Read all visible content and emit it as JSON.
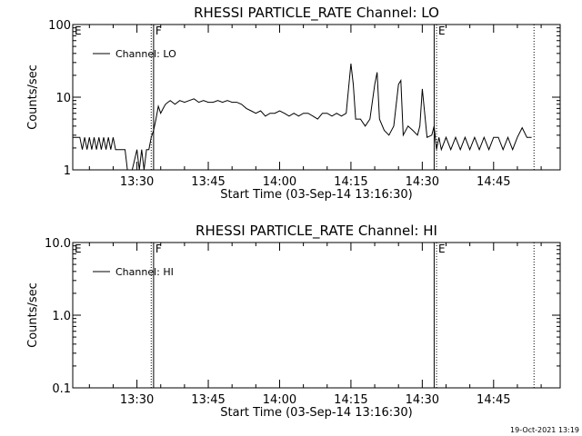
{
  "footer": {
    "date_stamp": "19-Oct-2021 13:19"
  },
  "chart_data": [
    {
      "type": "line",
      "title": "RHESSI PARTICLE_RATE Channel: LO",
      "xlabel": "Start Time (03-Sep-14 13:16:30)",
      "ylabel": "Counts/sec",
      "yscale": "log",
      "ylim": [
        1,
        100
      ],
      "xlim": [
        "13:16:30",
        "14:59:00"
      ],
      "xticks": [
        "13:30",
        "13:45",
        "14:00",
        "14:15",
        "14:30",
        "14:45"
      ],
      "yticks": [
        "1",
        "10",
        "100"
      ],
      "legend": "top-left",
      "grid": false,
      "series": [
        {
          "name": "Channel: LO",
          "x": [
            "13:16:30",
            "13:18:00",
            "13:18:30",
            "13:19:00",
            "13:19:30",
            "13:20:00",
            "13:20:30",
            "13:21:00",
            "13:21:30",
            "13:22:00",
            "13:22:30",
            "13:23:00",
            "13:23:30",
            "13:24:00",
            "13:24:30",
            "13:25:00",
            "13:25:30",
            "13:26:00",
            "13:26:30",
            "13:27:00",
            "13:27:30",
            "13:28:00",
            "13:29:00",
            "13:30:00",
            "13:30:30",
            "13:31:00",
            "13:31:30",
            "13:32:00",
            "13:32:30",
            "13:33:00",
            "13:33:30",
            "13:34:00",
            "13:34:30",
            "13:35:00",
            "13:35:30",
            "13:36:00",
            "13:36:30",
            "13:37:00",
            "13:38:00",
            "13:39:00",
            "13:40:00",
            "13:41:00",
            "13:42:00",
            "13:43:00",
            "13:44:00",
            "13:45:00",
            "13:46:00",
            "13:47:00",
            "13:48:00",
            "13:49:00",
            "13:50:00",
            "13:51:00",
            "13:52:00",
            "13:53:00",
            "13:54:00",
            "13:55:00",
            "13:56:00",
            "13:57:00",
            "13:58:00",
            "13:59:00",
            "14:00:00",
            "14:01:00",
            "14:02:00",
            "14:03:00",
            "14:04:00",
            "14:05:00",
            "14:06:00",
            "14:07:00",
            "14:08:00",
            "14:09:00",
            "14:10:00",
            "14:11:00",
            "14:12:00",
            "14:13:00",
            "14:14:00",
            "14:15:00",
            "14:15:30",
            "14:16:00",
            "14:17:00",
            "14:18:00",
            "14:19:00",
            "14:20:00",
            "14:20:30",
            "14:21:00",
            "14:22:00",
            "14:23:00",
            "14:24:00",
            "14:25:00",
            "14:25:30",
            "14:26:00",
            "14:27:00",
            "14:28:00",
            "14:29:00",
            "14:29:30",
            "14:30:00",
            "14:31:00",
            "14:32:00",
            "14:32:30",
            "14:33:00",
            "14:33:30",
            "14:34:00",
            "14:35:00",
            "14:36:00",
            "14:37:00",
            "14:38:00",
            "14:39:00",
            "14:40:00",
            "14:41:00",
            "14:42:00",
            "14:43:00",
            "14:44:00",
            "14:45:00",
            "14:46:00",
            "14:47:00",
            "14:48:00",
            "14:49:00",
            "14:50:00",
            "14:51:00",
            "14:52:00",
            "14:53:00"
          ],
          "y": [
            2.8,
            2.8,
            1.9,
            2.8,
            1.9,
            2.8,
            1.9,
            2.8,
            1.9,
            2.8,
            1.9,
            2.8,
            1.9,
            2.8,
            1.9,
            2.8,
            1.9,
            1.9,
            1.9,
            1.9,
            1.9,
            1.0,
            1.0,
            1.9,
            1.0,
            1.9,
            1.0,
            1.9,
            1.9,
            2.8,
            3.5,
            5.0,
            7.5,
            6.0,
            7.0,
            8.0,
            8.5,
            9.0,
            8.0,
            9.0,
            8.5,
            9.0,
            9.5,
            8.5,
            9.0,
            8.5,
            8.5,
            9.0,
            8.5,
            9.0,
            8.5,
            8.5,
            8.0,
            7.0,
            6.5,
            6.0,
            6.5,
            5.5,
            6.0,
            6.0,
            6.5,
            6.0,
            5.5,
            6.0,
            5.5,
            6.0,
            6.0,
            5.5,
            5.0,
            6.0,
            6.0,
            5.5,
            6.0,
            5.5,
            6.0,
            29.0,
            15.0,
            5.0,
            5.0,
            4.0,
            5.0,
            15.0,
            22.0,
            5.0,
            3.5,
            3.0,
            4.0,
            15.0,
            17.0,
            3.0,
            4.0,
            3.5,
            3.0,
            4.0,
            13.0,
            2.8,
            3.0,
            4.0,
            1.9,
            2.8,
            1.9,
            2.8,
            1.9,
            2.8,
            1.9,
            2.8,
            1.9,
            2.8,
            1.9,
            2.8,
            1.9,
            2.8,
            2.8,
            1.9,
            2.8,
            1.9,
            2.8,
            3.8,
            2.8,
            2.8
          ]
        }
      ],
      "annotations": [
        {
          "label": "E",
          "x": "13:16:30"
        },
        {
          "label": "F",
          "x": "13:33:30"
        },
        {
          "label": "E",
          "x": "14:33:00"
        }
      ],
      "vertical_lines": [
        {
          "x": "13:33:00",
          "style": "dotted"
        },
        {
          "x": "13:33:30",
          "style": "solid"
        },
        {
          "x": "14:32:30",
          "style": "solid"
        },
        {
          "x": "14:33:00",
          "style": "dotted"
        },
        {
          "x": "14:53:30",
          "style": "dotted"
        }
      ]
    },
    {
      "type": "line",
      "title": "RHESSI PARTICLE_RATE Channel: HI",
      "xlabel": "Start Time (03-Sep-14 13:16:30)",
      "ylabel": "Counts/sec",
      "yscale": "log",
      "ylim": [
        0.1,
        10
      ],
      "xlim": [
        "13:16:30",
        "14:59:00"
      ],
      "xticks": [
        "13:30",
        "13:45",
        "14:00",
        "14:15",
        "14:30",
        "14:45"
      ],
      "yticks": [
        "0.1",
        "1.0",
        "10.0"
      ],
      "legend": "top-left",
      "grid": false,
      "series": [
        {
          "name": "Channel: HI",
          "x": [],
          "y": []
        }
      ],
      "annotations": [
        {
          "label": "E",
          "x": "13:16:30"
        },
        {
          "label": "F",
          "x": "13:33:30"
        },
        {
          "label": "E",
          "x": "14:33:00"
        }
      ],
      "vertical_lines": [
        {
          "x": "13:33:00",
          "style": "dotted"
        },
        {
          "x": "13:33:30",
          "style": "solid"
        },
        {
          "x": "14:32:30",
          "style": "solid"
        },
        {
          "x": "14:33:00",
          "style": "dotted"
        },
        {
          "x": "14:53:30",
          "style": "dotted"
        }
      ]
    }
  ]
}
